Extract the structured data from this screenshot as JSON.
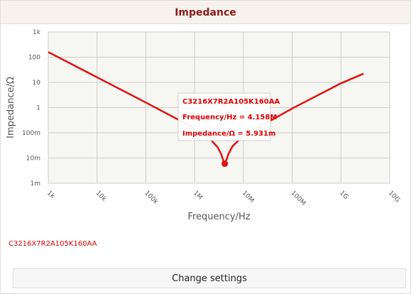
{
  "header": {
    "title": "Impedance"
  },
  "footer": {
    "button": "Change settings"
  },
  "chart_data": {
    "type": "line",
    "log_x": true,
    "log_y": true,
    "grid": true,
    "x_label": "Frequency/Hz",
    "y_label": "Impedance/Ω",
    "xlim": [
      1000,
      10000000000
    ],
    "ylim": [
      0.001,
      1000
    ],
    "xticks": [
      {
        "value": 1000,
        "label": "1k"
      },
      {
        "value": 10000,
        "label": "10k"
      },
      {
        "value": 100000,
        "label": "100k"
      },
      {
        "value": 1000000,
        "label": "1M"
      },
      {
        "value": 10000000,
        "label": "10M"
      },
      {
        "value": 100000000,
        "label": "100M"
      },
      {
        "value": 1000000000,
        "label": "1G"
      },
      {
        "value": 10000000000,
        "label": "10G"
      }
    ],
    "yticks": [
      {
        "value": 0.001,
        "label": "1m"
      },
      {
        "value": 0.01,
        "label": "10m"
      },
      {
        "value": 0.1,
        "label": "100m"
      },
      1,
      10,
      100,
      {
        "value": 1000,
        "label": "1k"
      }
    ],
    "series": [
      {
        "name": "C3216X7R2A105K160AA",
        "color": "#e01010",
        "x": [
          1000,
          10000,
          100000,
          1000000,
          2000000,
          3000000,
          3500000,
          4000000,
          4158000,
          4500000,
          5000000,
          6000000,
          10000000,
          100000000,
          1000000000,
          2900000000
        ],
        "values": [
          159.2,
          15.92,
          1.592,
          0.1506,
          0.0615,
          0.0261,
          0.0145,
          0.00663,
          0.005931,
          0.00847,
          0.01538,
          0.0293,
          0.0764,
          0.919,
          9.205,
          22
        ]
      }
    ],
    "tooltip": {
      "title": "C3216X7R2A105K160AA",
      "x_text": "Frequency/Hz = 4.158M",
      "y_text": "Impedance/Ω = 5.931m",
      "x": 4158000,
      "y": 0.005931
    }
  }
}
